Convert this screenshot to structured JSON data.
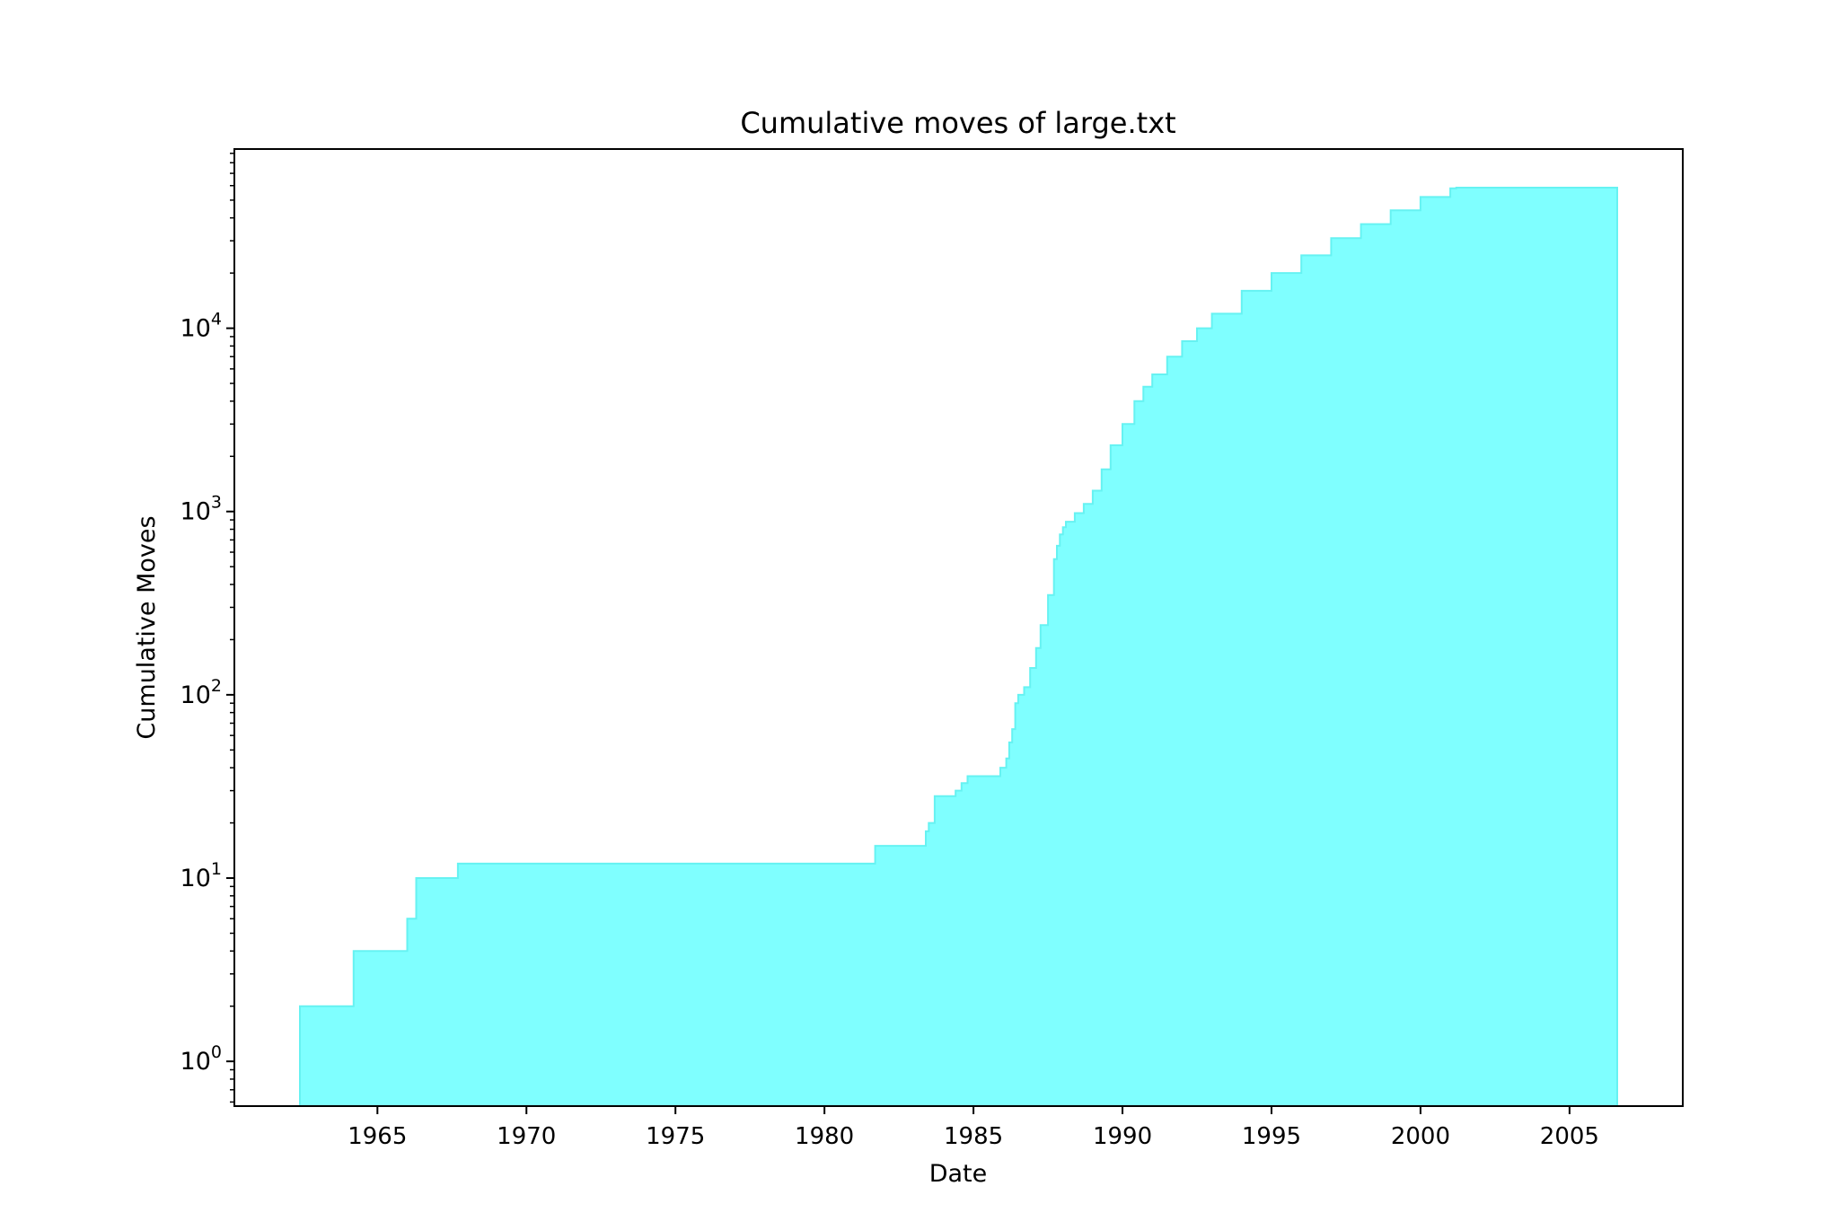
{
  "chart_data": {
    "type": "area",
    "title": "Cumulative moves of large.txt",
    "xlabel": "Date",
    "ylabel": "Cumulative Moves",
    "x_scale": "time",
    "y_scale": "log",
    "xlim": [
      1960.2,
      2008.8
    ],
    "ylim": [
      0.57,
      95000
    ],
    "x_ticks": [
      "1965",
      "1970",
      "1975",
      "1980",
      "1985",
      "1990",
      "1995",
      "2000",
      "2005"
    ],
    "y_ticks": [
      {
        "base": "10",
        "exp": "0",
        "value": 1
      },
      {
        "base": "10",
        "exp": "1",
        "value": 10
      },
      {
        "base": "10",
        "exp": "2",
        "value": 100
      },
      {
        "base": "10",
        "exp": "3",
        "value": 1000
      },
      {
        "base": "10",
        "exp": "4",
        "value": 10000
      }
    ],
    "grid": false,
    "fill_color": "#7fffff",
    "edge_color": "#66f2f2",
    "series": [
      {
        "step": true,
        "x": [
          1962.4,
          1964.2,
          1966.0,
          1966.3,
          1967.7,
          1981.7,
          1983.4,
          1983.5,
          1983.7,
          1984.4,
          1984.6,
          1984.8,
          1985.9,
          1986.1,
          1986.2,
          1986.3,
          1986.4,
          1986.5,
          1986.7,
          1986.9,
          1987.1,
          1987.25,
          1987.5,
          1987.7,
          1987.8,
          1987.9,
          1988.0,
          1988.1,
          1988.4,
          1988.7,
          1989.0,
          1989.3,
          1989.6,
          1990.0,
          1990.4,
          1990.7,
          1991.0,
          1991.5,
          1992.0,
          1992.5,
          1993.0,
          1994.0,
          1995.0,
          1996.0,
          1997.0,
          1998.0,
          1999.0,
          2000.0,
          2001.0,
          2001.2,
          2006.6
        ],
        "y": [
          2,
          4,
          6,
          10,
          12,
          15,
          18,
          20,
          28,
          30,
          33,
          36,
          40,
          45,
          55,
          65,
          90,
          100,
          110,
          140,
          180,
          240,
          350,
          550,
          650,
          750,
          820,
          880,
          980,
          1100,
          1300,
          1700,
          2300,
          3000,
          4000,
          4800,
          5600,
          7000,
          8500,
          10000,
          12000,
          16000,
          20000,
          25000,
          31000,
          37000,
          44000,
          52000,
          58000,
          58500,
          58500
        ]
      }
    ]
  }
}
